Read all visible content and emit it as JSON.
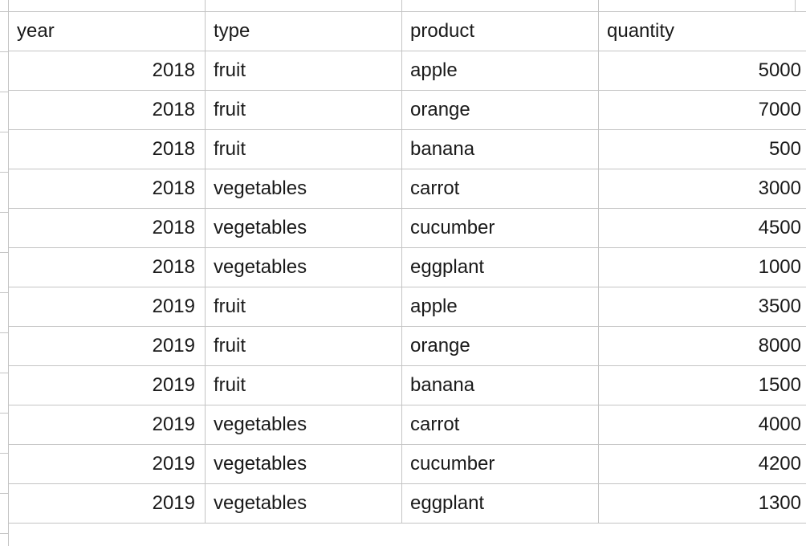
{
  "table": {
    "headers": [
      "year",
      "type",
      "product",
      "quantity"
    ],
    "rows": [
      [
        "2018",
        "fruit",
        "apple",
        "5000"
      ],
      [
        "2018",
        "fruit",
        "orange",
        "7000"
      ],
      [
        "2018",
        "fruit",
        "banana",
        "500"
      ],
      [
        "2018",
        "vegetables",
        "carrot",
        "3000"
      ],
      [
        "2018",
        "vegetables",
        "cucumber",
        "4500"
      ],
      [
        "2018",
        "vegetables",
        "eggplant",
        "1000"
      ],
      [
        "2019",
        "fruit",
        "apple",
        "3500"
      ],
      [
        "2019",
        "fruit",
        "orange",
        "8000"
      ],
      [
        "2019",
        "fruit",
        "banana",
        "1500"
      ],
      [
        "2019",
        "vegetables",
        "carrot",
        "4000"
      ],
      [
        "2019",
        "vegetables",
        "cucumber",
        "4200"
      ],
      [
        "2019",
        "vegetables",
        "eggplant",
        "1300"
      ]
    ]
  },
  "colors": {
    "gridline": "#c4c4c4",
    "text": "#1a1a1a",
    "background": "#ffffff"
  }
}
